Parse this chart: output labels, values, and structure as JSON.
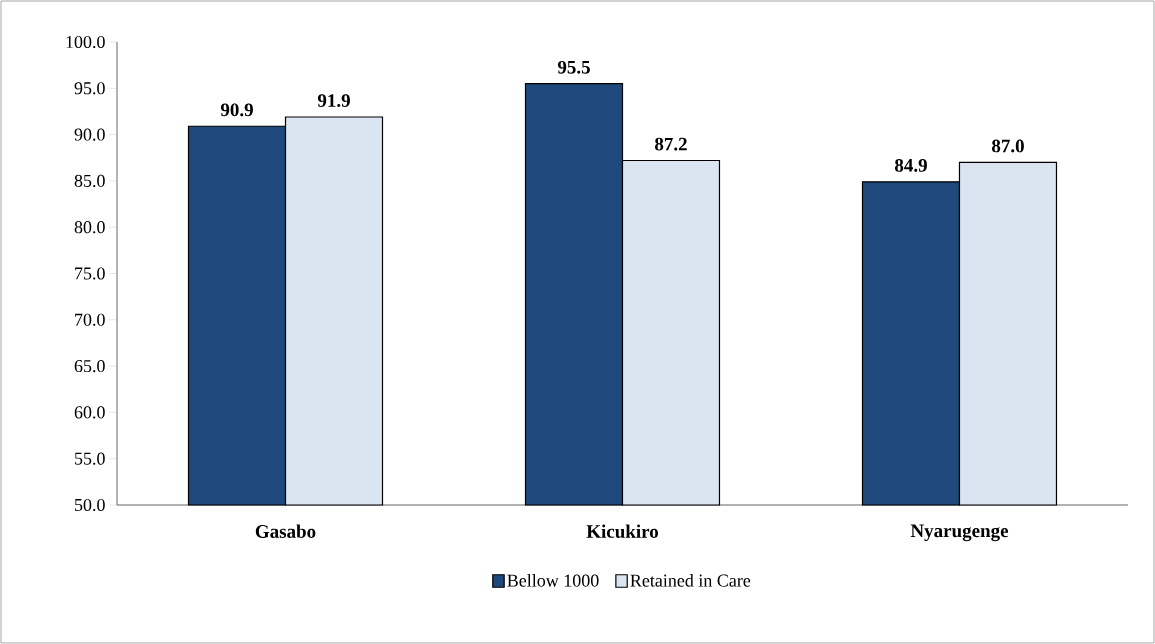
{
  "chart_data": {
    "type": "bar",
    "categories": [
      "Gasabo",
      "Kicukiro",
      "Nyarugenge"
    ],
    "series": [
      {
        "name": "Bellow 1000",
        "color": "#1f497d",
        "values": [
          90.9,
          95.5,
          84.9
        ],
        "value_labels": [
          "90.9",
          "95.5",
          "84.9"
        ]
      },
      {
        "name": "Retained in Care",
        "color": "#dbe5f1",
        "values": [
          91.9,
          87.2,
          87.0
        ],
        "value_labels": [
          "91.9",
          "87.2",
          "87.0"
        ]
      }
    ],
    "ylim": [
      50,
      100
    ],
    "yticks": [
      {
        "value": 50,
        "label": "50.0"
      },
      {
        "value": 55,
        "label": "55.0"
      },
      {
        "value": 60,
        "label": "60.0"
      },
      {
        "value": 65,
        "label": "65.0"
      },
      {
        "value": 70,
        "label": "70.0"
      },
      {
        "value": 75,
        "label": "75.0"
      },
      {
        "value": 80,
        "label": "80.0"
      },
      {
        "value": 85,
        "label": "85.0"
      },
      {
        "value": 90,
        "label": "90.0"
      },
      {
        "value": 95,
        "label": "95.0"
      },
      {
        "value": 100,
        "label": "100.0"
      }
    ],
    "legend": "bottom"
  }
}
